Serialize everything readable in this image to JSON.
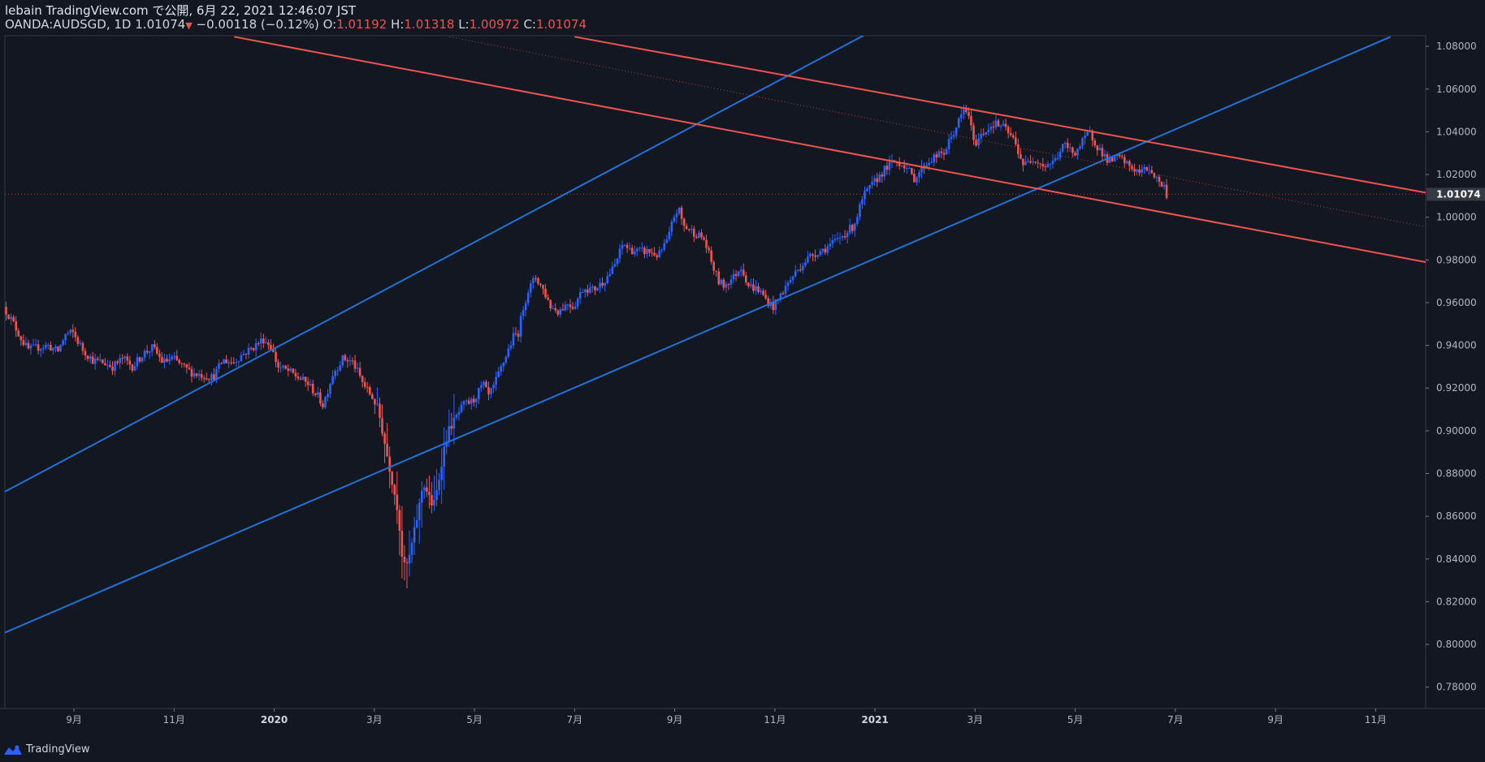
{
  "header": {
    "line1": "lebain TradingView.com で公開, 6月 22, 2021 12:46:07 JST",
    "symbol": "OANDA:AUDSGD, 1D",
    "last": "1.01074",
    "change": "−0.00118 (−0.12%)",
    "o_label": "O:",
    "o_value": "1.01192",
    "h_label": "H:",
    "h_value": "1.01318",
    "l_label": "L:",
    "l_value": "1.00972",
    "c_label": "C:",
    "c_value": "1.01074"
  },
  "footer": {
    "brand": "TradingView"
  },
  "colors": {
    "bg": "#131722",
    "up": "#2962ff",
    "down": "#ef5350",
    "blue_line": "#2272d6",
    "red_line": "#f05350",
    "grid": "#363a45"
  },
  "chart_data": {
    "type": "candlestick",
    "symbol": "OANDA:AUDSGD",
    "interval": "1D",
    "ylim": [
      0.77,
      1.085
    ],
    "y_ticks": [
      "1.08000",
      "1.06000",
      "1.04000",
      "1.02000",
      "1.00000",
      "0.98000",
      "0.96000",
      "0.94000",
      "0.92000",
      "0.90000",
      "0.88000",
      "0.86000",
      "0.84000",
      "0.82000",
      "0.80000",
      "0.78000"
    ],
    "y_tick_values": [
      1.08,
      1.06,
      1.04,
      1.02,
      1.0,
      0.98,
      0.96,
      0.94,
      0.92,
      0.9,
      0.88,
      0.86,
      0.84,
      0.82,
      0.8,
      0.78
    ],
    "last_price_label": "1.01074",
    "last_price": 1.01074,
    "x_ticks": [
      {
        "label": "9月",
        "bold": false,
        "t": 1
      },
      {
        "label": "11月",
        "bold": false,
        "t": 3
      },
      {
        "label": "2020",
        "bold": true,
        "t": 5
      },
      {
        "label": "3月",
        "bold": false,
        "t": 7
      },
      {
        "label": "5月",
        "bold": false,
        "t": 9
      },
      {
        "label": "7月",
        "bold": false,
        "t": 11
      },
      {
        "label": "9月",
        "bold": false,
        "t": 13
      },
      {
        "label": "11月",
        "bold": false,
        "t": 15
      },
      {
        "label": "2021",
        "bold": true,
        "t": 17
      },
      {
        "label": "3月",
        "bold": false,
        "t": 19
      },
      {
        "label": "5月",
        "bold": false,
        "t": 21
      },
      {
        "label": "7月",
        "bold": false,
        "t": 23
      },
      {
        "label": "9月",
        "bold": false,
        "t": 25
      },
      {
        "label": "11月",
        "bold": false,
        "t": 27
      }
    ],
    "x_range": [
      -0.38,
      28.0
    ],
    "price_path": [
      [
        -0.38,
        0.958
      ],
      [
        -0.2,
        0.951
      ],
      [
        -0.05,
        0.944
      ],
      [
        0.1,
        0.938
      ],
      [
        0.3,
        0.939
      ],
      [
        0.5,
        0.94
      ],
      [
        0.7,
        0.937
      ],
      [
        0.85,
        0.945
      ],
      [
        1.0,
        0.946
      ],
      [
        1.2,
        0.938
      ],
      [
        1.4,
        0.933
      ],
      [
        1.6,
        0.932
      ],
      [
        1.8,
        0.93
      ],
      [
        2.0,
        0.934
      ],
      [
        2.2,
        0.93
      ],
      [
        2.4,
        0.936
      ],
      [
        2.6,
        0.939
      ],
      [
        2.8,
        0.932
      ],
      [
        3.0,
        0.934
      ],
      [
        3.2,
        0.93
      ],
      [
        3.4,
        0.927
      ],
      [
        3.6,
        0.926
      ],
      [
        3.8,
        0.925
      ],
      [
        4.0,
        0.933
      ],
      [
        4.2,
        0.932
      ],
      [
        4.4,
        0.936
      ],
      [
        4.6,
        0.939
      ],
      [
        4.8,
        0.943
      ],
      [
        4.95,
        0.94
      ],
      [
        5.1,
        0.93
      ],
      [
        5.3,
        0.928
      ],
      [
        5.5,
        0.925
      ],
      [
        5.7,
        0.922
      ],
      [
        5.9,
        0.916
      ],
      [
        6.0,
        0.912
      ],
      [
        6.2,
        0.927
      ],
      [
        6.4,
        0.934
      ],
      [
        6.6,
        0.932
      ],
      [
        6.8,
        0.922
      ],
      [
        7.0,
        0.915
      ],
      [
        7.1,
        0.91
      ],
      [
        7.2,
        0.898
      ],
      [
        7.35,
        0.88
      ],
      [
        7.5,
        0.862
      ],
      [
        7.6,
        0.836
      ],
      [
        7.7,
        0.838
      ],
      [
        7.8,
        0.85
      ],
      [
        7.9,
        0.862
      ],
      [
        8.0,
        0.876
      ],
      [
        8.1,
        0.87
      ],
      [
        8.2,
        0.864
      ],
      [
        8.3,
        0.875
      ],
      [
        8.4,
        0.89
      ],
      [
        8.5,
        0.9
      ],
      [
        8.6,
        0.904
      ],
      [
        8.8,
        0.912
      ],
      [
        9.0,
        0.914
      ],
      [
        9.1,
        0.918
      ],
      [
        9.2,
        0.922
      ],
      [
        9.3,
        0.916
      ],
      [
        9.4,
        0.92
      ],
      [
        9.6,
        0.932
      ],
      [
        9.8,
        0.944
      ],
      [
        9.9,
        0.946
      ],
      [
        10.0,
        0.958
      ],
      [
        10.1,
        0.966
      ],
      [
        10.25,
        0.972
      ],
      [
        10.4,
        0.966
      ],
      [
        10.55,
        0.958
      ],
      [
        10.7,
        0.956
      ],
      [
        10.9,
        0.96
      ],
      [
        11.0,
        0.958
      ],
      [
        11.2,
        0.967
      ],
      [
        11.4,
        0.966
      ],
      [
        11.6,
        0.97
      ],
      [
        11.8,
        0.976
      ],
      [
        12.0,
        0.988
      ],
      [
        12.1,
        0.985
      ],
      [
        12.3,
        0.984
      ],
      [
        12.5,
        0.984
      ],
      [
        12.7,
        0.982
      ],
      [
        12.9,
        0.99
      ],
      [
        13.0,
        1.0
      ],
      [
        13.1,
        1.004
      ],
      [
        13.2,
        0.996
      ],
      [
        13.4,
        0.993
      ],
      [
        13.6,
        0.99
      ],
      [
        13.8,
        0.976
      ],
      [
        13.9,
        0.97
      ],
      [
        14.0,
        0.968
      ],
      [
        14.2,
        0.972
      ],
      [
        14.35,
        0.977
      ],
      [
        14.5,
        0.968
      ],
      [
        14.7,
        0.966
      ],
      [
        14.9,
        0.96
      ],
      [
        15.0,
        0.958
      ],
      [
        15.2,
        0.966
      ],
      [
        15.4,
        0.973
      ],
      [
        15.6,
        0.979
      ],
      [
        15.8,
        0.983
      ],
      [
        16.0,
        0.985
      ],
      [
        16.2,
        0.988
      ],
      [
        16.4,
        0.992
      ],
      [
        16.6,
        0.996
      ],
      [
        16.8,
        1.01
      ],
      [
        17.0,
        1.016
      ],
      [
        17.2,
        1.022
      ],
      [
        17.4,
        1.026
      ],
      [
        17.6,
        1.025
      ],
      [
        17.8,
        1.018
      ],
      [
        18.0,
        1.024
      ],
      [
        18.2,
        1.028
      ],
      [
        18.4,
        1.03
      ],
      [
        18.6,
        1.04
      ],
      [
        18.8,
        1.05
      ],
      [
        18.9,
        1.048
      ],
      [
        19.0,
        1.034
      ],
      [
        19.2,
        1.04
      ],
      [
        19.4,
        1.044
      ],
      [
        19.6,
        1.042
      ],
      [
        19.8,
        1.036
      ],
      [
        20.0,
        1.024
      ],
      [
        20.2,
        1.028
      ],
      [
        20.4,
        1.024
      ],
      [
        20.6,
        1.026
      ],
      [
        20.8,
        1.034
      ],
      [
        21.0,
        1.03
      ],
      [
        21.2,
        1.036
      ],
      [
        21.3,
        1.04
      ],
      [
        21.5,
        1.032
      ],
      [
        21.7,
        1.026
      ],
      [
        21.9,
        1.028
      ],
      [
        22.1,
        1.024
      ],
      [
        22.3,
        1.021
      ],
      [
        22.5,
        1.023
      ],
      [
        22.65,
        1.018
      ],
      [
        22.8,
        1.014
      ],
      [
        22.85,
        1.0107
      ]
    ],
    "trendlines": [
      {
        "name": "blue-channel-upper",
        "color": "blue",
        "x1": -0.38,
        "y1": 0.8715,
        "x2": 20.9,
        "y2": 1.1365
      },
      {
        "name": "blue-channel-lower",
        "color": "blue",
        "x1": -0.38,
        "y1": 0.8055,
        "x2": 27.3,
        "y2": 1.0845
      },
      {
        "name": "red-channel-upper",
        "color": "red",
        "x1": 11.0,
        "y1": 1.0845,
        "x2": 28.0,
        "y2": 1.0115
      },
      {
        "name": "red-channel-lower",
        "color": "red",
        "x1": 4.2,
        "y1": 1.0845,
        "x2": 28.0,
        "y2": 0.979
      },
      {
        "name": "red-channel-mid",
        "color": "red",
        "dotted": true,
        "x1": 8.5,
        "y1": 1.0845,
        "x2": 28.0,
        "y2": 0.9955
      }
    ]
  }
}
